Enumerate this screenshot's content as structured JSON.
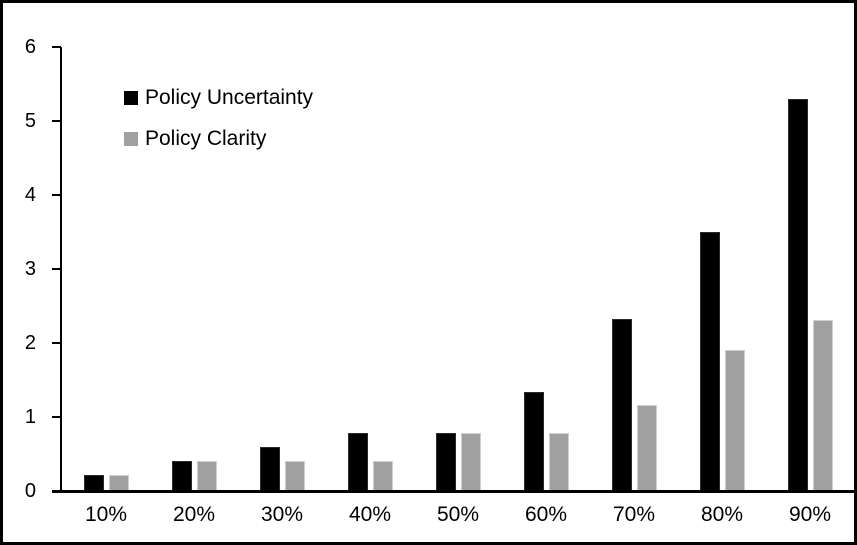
{
  "chart_data": {
    "type": "bar",
    "title": "",
    "xlabel": "",
    "ylabel": "",
    "categories": [
      "10%",
      "20%",
      "30%",
      "40%",
      "50%",
      "60%",
      "70%",
      "80%",
      "90%"
    ],
    "series": [
      {
        "name": "Policy Uncertainty",
        "color": "#000000",
        "border_color": "#2a2a2a",
        "values": [
          0.2,
          0.39,
          0.58,
          0.77,
          0.77,
          1.33,
          2.31,
          3.5,
          5.3
        ]
      },
      {
        "name": "Policy Clarity",
        "color": "#a0a0a0",
        "border_color": "#cfcfcf",
        "values": [
          0.2,
          0.39,
          0.39,
          0.39,
          0.77,
          0.77,
          1.15,
          1.9,
          2.3
        ]
      }
    ],
    "ylim": [
      0,
      6
    ],
    "yticks": [
      0,
      1,
      2,
      3,
      4,
      5,
      6
    ],
    "grid": false,
    "legend_position": "top-left"
  },
  "legend": {
    "items": [
      {
        "label": "Policy Uncertainty",
        "color": "#000000"
      },
      {
        "label": "Policy Clarity",
        "color": "#a0a0a0"
      }
    ]
  },
  "frame": {
    "border_color": "#000000",
    "background_color": "#ffffff"
  }
}
